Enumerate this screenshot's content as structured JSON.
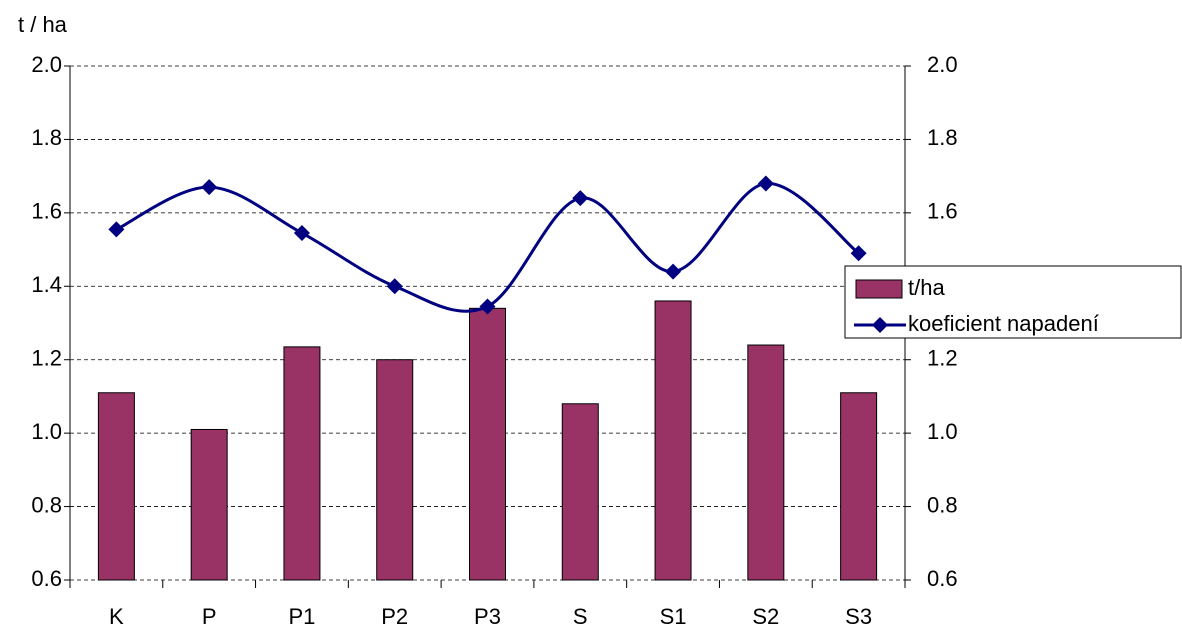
{
  "chart_data": {
    "type": "bar_line",
    "y_label": "t / ha",
    "categories": [
      "K",
      "P",
      "P1",
      "P2",
      "P3",
      "S",
      "S1",
      "S2",
      "S3"
    ],
    "series": [
      {
        "name": "t/ha",
        "type": "bar",
        "color": "#993366",
        "values": [
          1.11,
          1.01,
          1.235,
          1.2,
          1.34,
          1.08,
          1.36,
          1.24,
          1.11
        ]
      },
      {
        "name": "koeficient napadení",
        "type": "line",
        "axis": "y2",
        "color": "#000080",
        "values": [
          1.555,
          1.67,
          1.545,
          1.4,
          1.345,
          1.64,
          1.44,
          1.68,
          1.49
        ]
      }
    ],
    "ylim": [
      0.6,
      2.0
    ],
    "yticks": [
      0.6,
      0.8,
      {
        "value": 1.0,
        "label": "1.0"
      },
      1.2,
      1.4,
      1.6,
      1.8,
      {
        "value": 2.0,
        "label": "2.0"
      }
    ],
    "y2lim": [
      0.6,
      2.0
    ],
    "y2ticks": [
      0.6,
      0.8,
      {
        "value": 1.0,
        "label": "1.0"
      },
      1.2,
      1.4,
      1.6,
      1.8,
      {
        "value": 2.0,
        "label": "2.0"
      }
    ],
    "grid": true,
    "legend": "right"
  }
}
